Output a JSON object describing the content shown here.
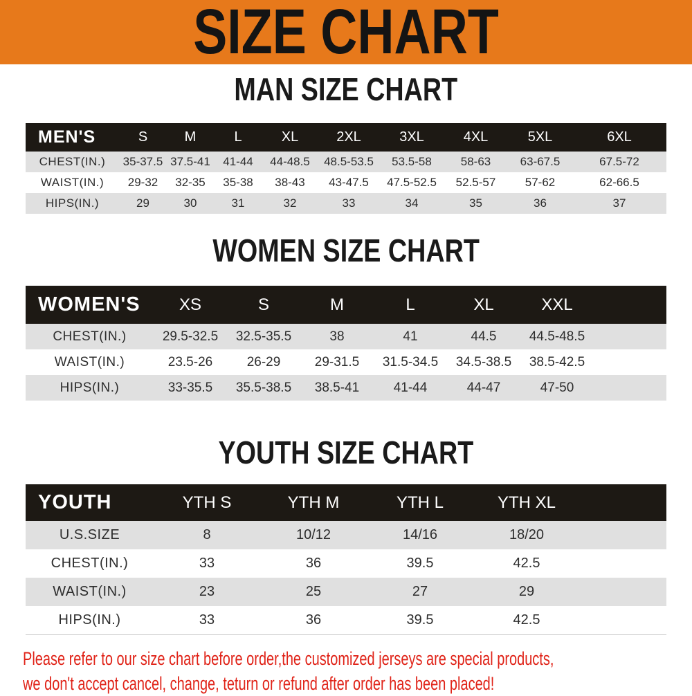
{
  "banner": {
    "title": "SIZE CHART"
  },
  "colors": {
    "banner_bg": "#E7791B",
    "table_header_bg": "#1D1914",
    "row_alt_bg": "#E0E0E0",
    "notice_red": "#E02318"
  },
  "sections": [
    {
      "heading": "MAN SIZE CHART",
      "table": {
        "corner_label": "MEN'S",
        "columns": [
          "S",
          "M",
          "L",
          "XL",
          "2XL",
          "3XL",
          "4XL",
          "5XL",
          "6XL"
        ],
        "rows": [
          {
            "label": "CHEST(IN.)",
            "values": [
              "35-37.5",
              "37.5-41",
              "41-44",
              "44-48.5",
              "48.5-53.5",
              "53.5-58",
              "58-63",
              "63-67.5",
              "67.5-72"
            ]
          },
          {
            "label": "WAIST(IN.)",
            "values": [
              "29-32",
              "32-35",
              "35-38",
              "38-43",
              "43-47.5",
              "47.5-52.5",
              "52.5-57",
              "57-62",
              "62-66.5"
            ]
          },
          {
            "label": "HIPS(IN.)",
            "values": [
              "29",
              "30",
              "31",
              "32",
              "33",
              "34",
              "35",
              "36",
              "37"
            ]
          }
        ]
      }
    },
    {
      "heading": "WOMEN SIZE CHART",
      "table": {
        "corner_label": "WOMEN'S",
        "columns": [
          "XS",
          "S",
          "M",
          "L",
          "XL",
          "XXL"
        ],
        "rows": [
          {
            "label": "CHEST(IN.)",
            "values": [
              "29.5-32.5",
              "32.5-35.5",
              "38",
              "41",
              "44.5",
              "44.5-48.5"
            ]
          },
          {
            "label": "WAIST(IN.)",
            "values": [
              "23.5-26",
              "26-29",
              "29-31.5",
              "31.5-34.5",
              "34.5-38.5",
              "38.5-42.5"
            ]
          },
          {
            "label": "HIPS(IN.)",
            "values": [
              "33-35.5",
              "35.5-38.5",
              "38.5-41",
              "41-44",
              "44-47",
              "47-50"
            ]
          }
        ]
      }
    },
    {
      "heading": "YOUTH SIZE CHART",
      "table": {
        "corner_label": "YOUTH",
        "columns": [
          "YTH S",
          "YTH M",
          "YTH L",
          "YTH XL"
        ],
        "rows": [
          {
            "label": "U.S.SIZE",
            "values": [
              "8",
              "10/12",
              "14/16",
              "18/20"
            ]
          },
          {
            "label": "CHEST(IN.)",
            "values": [
              "33",
              "36",
              "39.5",
              "42.5"
            ]
          },
          {
            "label": "WAIST(IN.)",
            "values": [
              "23",
              "25",
              "27",
              "29"
            ]
          },
          {
            "label": "HIPS(IN.)",
            "values": [
              "33",
              "36",
              "39.5",
              "42.5"
            ]
          }
        ]
      }
    }
  ],
  "notice": {
    "line1": "Please refer to our size chart before order,the customized jerseys are special products,",
    "line2": "we don't accept cancel, change, teturn or refund after order has been placed!"
  }
}
